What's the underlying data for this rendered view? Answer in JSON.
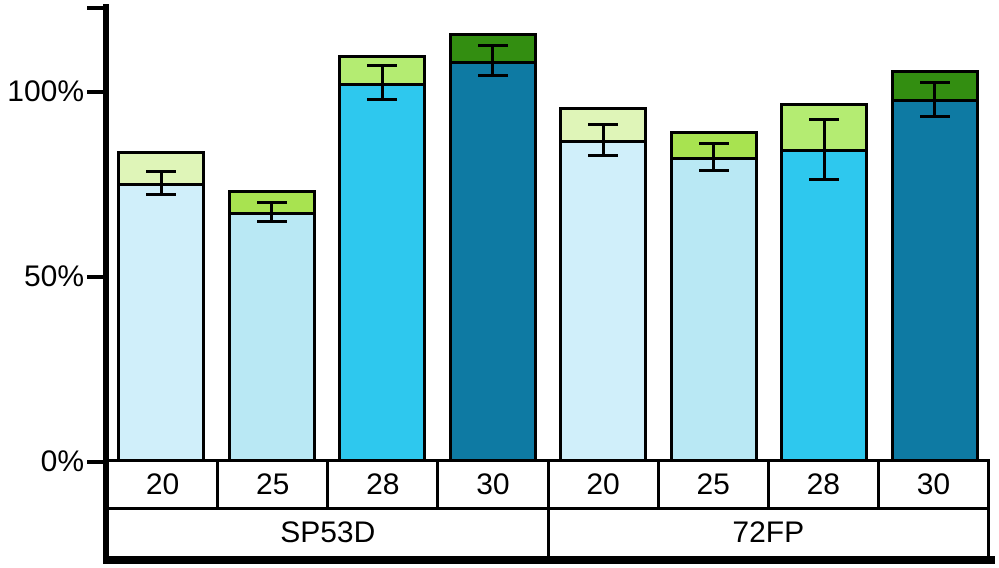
{
  "chart_data": {
    "type": "bar",
    "variant": "stacked-with-error-bars",
    "title": "",
    "xlabel": "",
    "ylabel": "",
    "grid": false,
    "legend": false,
    "y_axis": {
      "min": 0,
      "max": 122,
      "ticks": [
        {
          "value": 0,
          "label": "0%"
        },
        {
          "value": 50,
          "label": "50%"
        },
        {
          "value": 100,
          "label": "100%"
        }
      ]
    },
    "groups": [
      {
        "label": "SP53D",
        "bars": [
          {
            "category": "20",
            "base_value": 75.5,
            "top_value": 8.5,
            "total": 84,
            "error": 3.5,
            "base_color": "#d0effa",
            "top_color": "#dff5b8"
          },
          {
            "category": "25",
            "base_value": 67.5,
            "top_value": 6,
            "total": 73.5,
            "error": 3,
            "base_color": "#b9e8f4",
            "top_color": "#a8e350"
          },
          {
            "category": "28",
            "base_value": 102.5,
            "top_value": 7.5,
            "total": 110,
            "error": 5,
            "base_color": "#2ec8ee",
            "top_color": "#b4ec72"
          },
          {
            "category": "30",
            "base_value": 108.5,
            "top_value": 7.5,
            "total": 116,
            "error": 4.5,
            "base_color": "#0e7aa3",
            "top_color": "#338e11"
          }
        ]
      },
      {
        "label": "72FP",
        "bars": [
          {
            "category": "20",
            "base_value": 87,
            "top_value": 9,
            "total": 96,
            "error": 4.5,
            "base_color": "#d0effa",
            "top_color": "#dff5b8"
          },
          {
            "category": "25",
            "base_value": 82.5,
            "top_value": 7,
            "total": 89.5,
            "error": 4,
            "base_color": "#b9e8f4",
            "top_color": "#a8e350"
          },
          {
            "category": "28",
            "base_value": 84.5,
            "top_value": 12.5,
            "total": 97,
            "error": 8.5,
            "base_color": "#2ec8ee",
            "top_color": "#b4ec72"
          },
          {
            "category": "30",
            "base_value": 98,
            "top_value": 8,
            "total": 106,
            "error": 5,
            "base_color": "#0e7aa3",
            "top_color": "#338e11"
          }
        ]
      }
    ]
  }
}
